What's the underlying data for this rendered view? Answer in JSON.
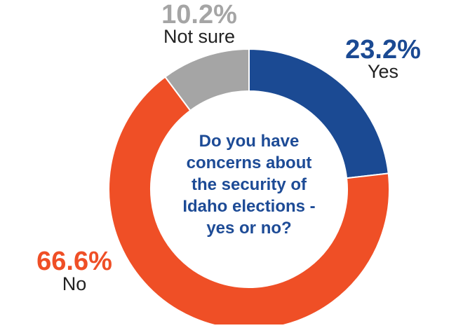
{
  "chart_data": {
    "type": "pie",
    "donut": true,
    "center_text": [
      "Do you have",
      "concerns about",
      "the security of",
      "Idaho elections -",
      "yes or no?"
    ],
    "slices": [
      {
        "label": "Yes",
        "value": 23.2,
        "value_label": "23.2%",
        "color": "#1b4a93"
      },
      {
        "label": "No",
        "value": 66.6,
        "value_label": "66.6%",
        "color": "#ef4f26"
      },
      {
        "label": "Not sure",
        "value": 10.2,
        "value_label": "10.2%",
        "color": "#a5a5a5"
      }
    ],
    "start": "12 o'clock",
    "direction": "clockwise"
  },
  "colors": {
    "question_text": "#1d4b96",
    "label_text": "#222222",
    "background": "#ffffff"
  }
}
